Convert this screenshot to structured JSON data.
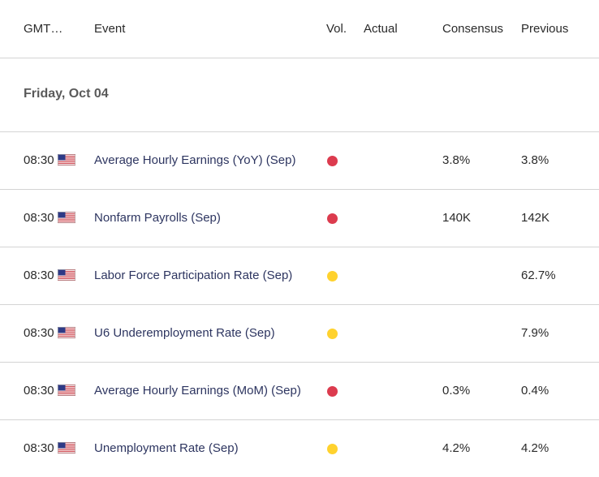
{
  "header": {
    "gmt": "GMT…",
    "event": "Event",
    "vol": "Vol.",
    "actual": "Actual",
    "consensus": "Consensus",
    "previous": "Previous"
  },
  "date_label": "Friday, Oct 04",
  "colors": {
    "high": "#dc3b4e",
    "medium": "#ffd22e"
  },
  "events": [
    {
      "time": "08:30",
      "country_icon": "us-flag-icon",
      "name": "Average Hourly Earnings (YoY) (Sep)",
      "volatility": "high",
      "actual": "",
      "consensus": "3.8%",
      "previous": "3.8%"
    },
    {
      "time": "08:30",
      "country_icon": "us-flag-icon",
      "name": "Nonfarm Payrolls (Sep)",
      "volatility": "high",
      "actual": "",
      "consensus": "140K",
      "previous": "142K"
    },
    {
      "time": "08:30",
      "country_icon": "us-flag-icon",
      "name": "Labor Force Participation Rate (Sep)",
      "volatility": "medium",
      "actual": "",
      "consensus": "",
      "previous": "62.7%"
    },
    {
      "time": "08:30",
      "country_icon": "us-flag-icon",
      "name": "U6 Underemployment Rate (Sep)",
      "volatility": "medium",
      "actual": "",
      "consensus": "",
      "previous": "7.9%"
    },
    {
      "time": "08:30",
      "country_icon": "us-flag-icon",
      "name": "Average Hourly Earnings (MoM) (Sep)",
      "volatility": "high",
      "actual": "",
      "consensus": "0.3%",
      "previous": "0.4%"
    },
    {
      "time": "08:30",
      "country_icon": "us-flag-icon",
      "name": "Unemployment Rate (Sep)",
      "volatility": "medium",
      "actual": "",
      "consensus": "4.2%",
      "previous": "4.2%"
    }
  ]
}
